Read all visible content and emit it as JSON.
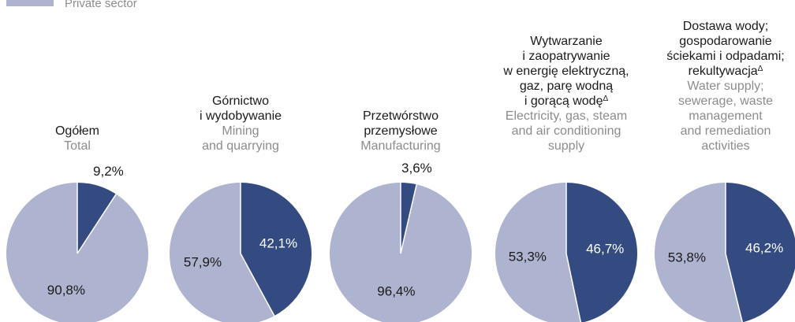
{
  "legend": {
    "private_label": "Private sector"
  },
  "colors": {
    "public": "#344b82",
    "private": "#aeb3d0",
    "public_label": "#ffffff",
    "private_label": "#1a1a1a"
  },
  "chart_data": {
    "type": "pie",
    "charts": [
      {
        "title_pl": "Ogółem",
        "title_en": "Total",
        "public": 9.2,
        "private": 90.8,
        "public_label": "9,2%",
        "private_label": "90,8%"
      },
      {
        "title_pl": "Górnictwo\ni wydobywanie",
        "title_en": "Mining\nand quarrying",
        "public": 42.1,
        "private": 57.9,
        "public_label": "42,1%",
        "private_label": "57,9%"
      },
      {
        "title_pl": "Przetwórstwo\nprzemysłowe",
        "title_en": "Manufacturing",
        "public": 3.6,
        "private": 96.4,
        "public_label": "3,6%",
        "private_label": "96,4%"
      },
      {
        "title_pl": "Wytwarzanie\ni zaopatrywanie\nw energię elektryczną,\ngaz, parę wodną\ni gorącą wodę",
        "title_sup": "Δ",
        "title_en": "Electricity, gas, steam\nand air conditioning\nsupply",
        "public": 46.7,
        "private": 53.3,
        "public_label": "46,7%",
        "private_label": "53,3%"
      },
      {
        "title_pl": "Dostawa wody;\ngospodarowanie\nściekami i odpadami;\nrekultywacja",
        "title_sup": "Δ",
        "title_en": "Water supply;\nsewerage, waste\nmanagement\nand remediation\nactivities",
        "public": 46.2,
        "private": 53.8,
        "public_label": "46,2%",
        "private_label": "53,8%"
      }
    ]
  }
}
